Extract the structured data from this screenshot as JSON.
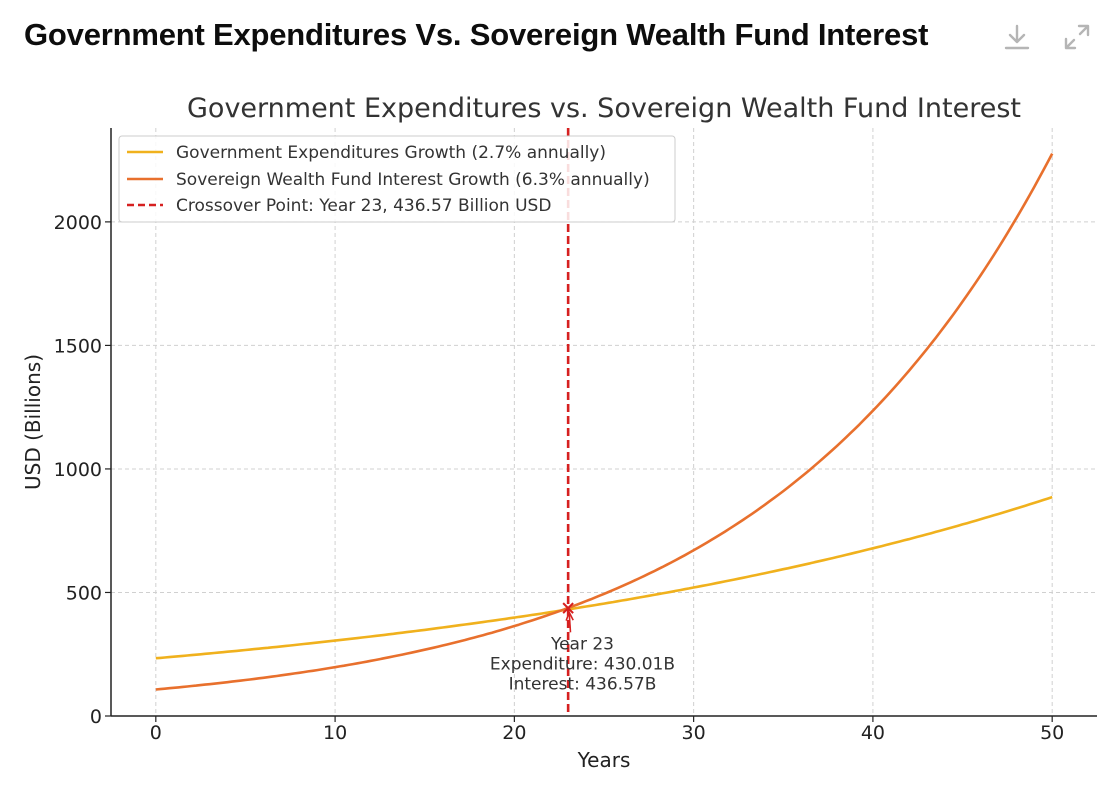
{
  "header": {
    "title": "Government Expenditures Vs. Sovereign Wealth Fund Interest",
    "download_icon": "download-icon",
    "expand_icon": "expand-icon"
  },
  "chart_data": {
    "type": "line",
    "title": "Government Expenditures vs. Sovereign Wealth Fund Interest",
    "xlabel": "Years",
    "ylabel": "USD (Billions)",
    "xlim": [
      -2.5,
      52.5
    ],
    "ylim": [
      0,
      2380
    ],
    "xticks": [
      0,
      10,
      20,
      30,
      40,
      50
    ],
    "yticks": [
      0,
      500,
      1000,
      1500,
      2000
    ],
    "grid": true,
    "legend_position": "top-left",
    "series": [
      {
        "name": "Government Expenditures Growth (2.7% annually)",
        "color": "#f0b11d",
        "start_value": 233.8,
        "growth_rate": 0.027,
        "x_start": 0,
        "x_end": 50
      },
      {
        "name": "Sovereign Wealth Fund Interest Growth (6.3% annually)",
        "color": "#e8702d",
        "start_value": 107.3,
        "growth_rate": 0.063,
        "x_start": 0,
        "x_end": 50
      }
    ],
    "crossover": {
      "legend_label": "Crossover Point: Year 23, 436.57 Billion USD",
      "color": "#d62020",
      "year": 23,
      "value": 436.57,
      "annotation": {
        "lines": [
          "Year 23",
          "Expenditure: 430.01B",
          "Interest: 436.57B"
        ],
        "text_x": 23.8,
        "text_y": 270
      }
    }
  }
}
